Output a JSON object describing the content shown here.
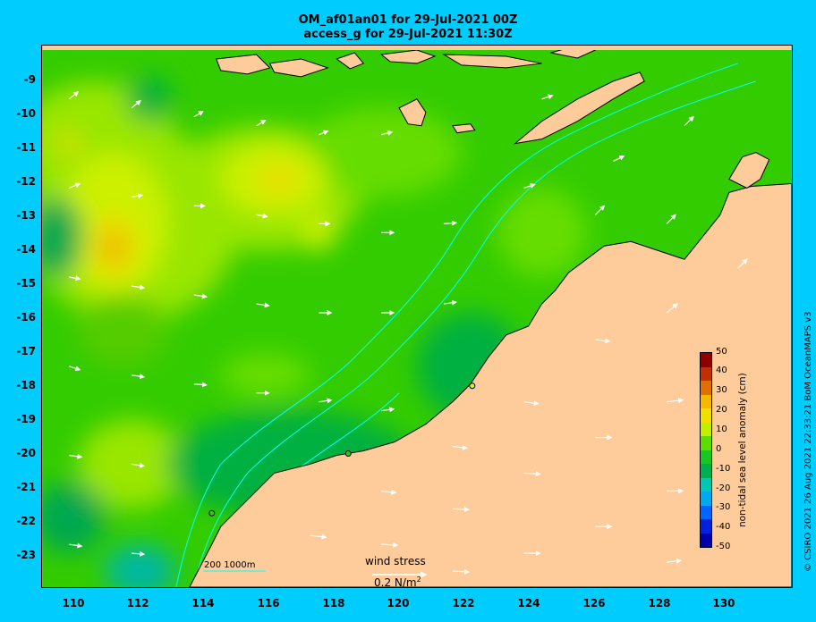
{
  "title_line1": "OM_af01an01 for 29-Jul-2021 00Z",
  "title_line2": "access_g for 29-Jul-2021 11:30Z",
  "credit": "© CSIRO 2021  26 Aug 2021 22:33:21 BoM OceanMAPS v3",
  "lat_labels": [
    "-9",
    "-10",
    "-11",
    "-12",
    "-13",
    "-14",
    "-15",
    "-16",
    "-17",
    "-18",
    "-19",
    "-20",
    "-21",
    "-22",
    "-23"
  ],
  "lon_labels": [
    "110",
    "112",
    "114",
    "116",
    "118",
    "120",
    "122",
    "124",
    "126",
    "128",
    "130"
  ],
  "colorbar": {
    "title": "non-tidal sea level anomaly (cm)",
    "ticks": [
      "50",
      "40",
      "30",
      "20",
      "10",
      "0",
      "-10",
      "-20",
      "-30",
      "-40",
      "-50"
    ],
    "colors": [
      "#0000aa",
      "#0022dd",
      "#0066ff",
      "#00aaee",
      "#00c8b4",
      "#00b050",
      "#18c820",
      "#60dd00",
      "#c0f000",
      "#f0e000",
      "#f8b800",
      "#e07000",
      "#c03000",
      "#900000"
    ]
  },
  "wind_legend": {
    "title": "wind stress",
    "unit": "0.2 N/m",
    "unit_sup": "2"
  },
  "contour_legend": "200  1000m",
  "colors": {
    "background": "#00cdfe",
    "land": "#fdcc9a",
    "sea_base": "#33cc00",
    "contour": "#00ffff",
    "arrow": "#ffffff"
  }
}
